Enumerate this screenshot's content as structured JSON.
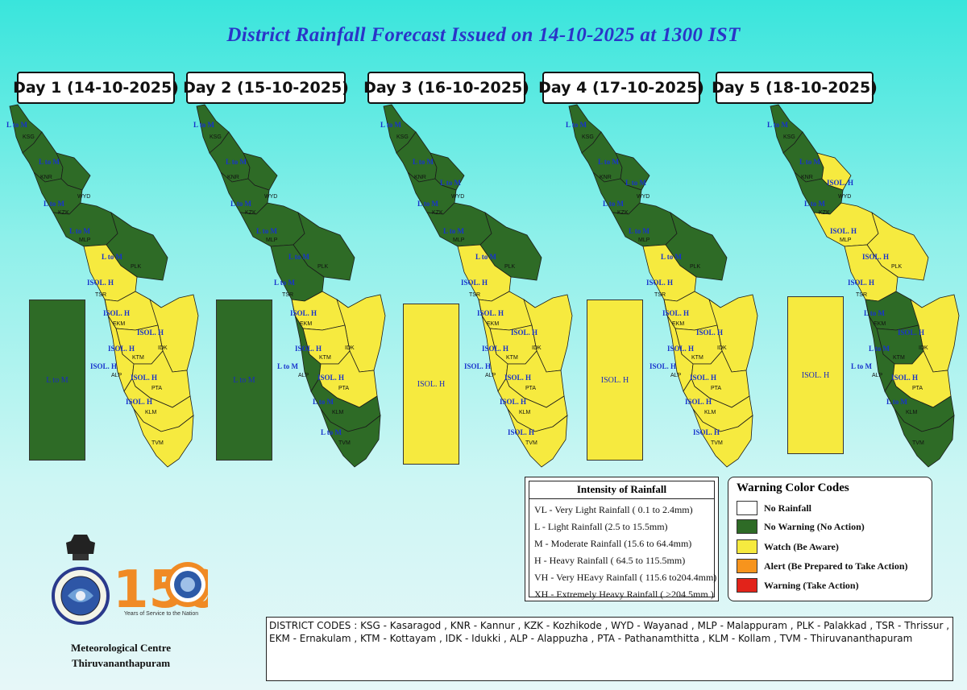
{
  "title": "District Rainfall Forecast Issued on  14-10-2025 at 1300 IST",
  "days": [
    {
      "label": "Day 1 (14-10-2025)",
      "legend_color": "#2e6b26",
      "legend_text": "L to M",
      "districts": {
        "KSG": "#2e6b26",
        "KNR": "#2e6b26",
        "WYD": "#2e6b26",
        "KZK": "#2e6b26",
        "MLP": "#2e6b26",
        "PLK": "#2e6b26",
        "TSR": "#f6ea3f",
        "EKM": "#f6ea3f",
        "IDK": "#f6ea3f",
        "KTM": "#f6ea3f",
        "ALP": "#f6ea3f",
        "PTA": "#f6ea3f",
        "KLM": "#f6ea3f",
        "TVM": "#f6ea3f"
      },
      "intensity": {
        "KSG": "L to M",
        "KNR": "L to M",
        "WYD": "",
        "KZK": "L to M",
        "MLP": "L to M",
        "PLK": "L to M",
        "TSR": "ISOL. H",
        "EKM": "ISOL. H",
        "IDK": "ISOL. H",
        "KTM": "ISOL. H",
        "ALP": "ISOL. H",
        "PTA": "ISOL. H",
        "KLM": "ISOL. H",
        "TVM": ""
      }
    },
    {
      "label": "Day 2 (15-10-2025)",
      "legend_color": "#2e6b26",
      "legend_text": "L to M",
      "districts": {
        "KSG": "#2e6b26",
        "KNR": "#2e6b26",
        "WYD": "#2e6b26",
        "KZK": "#2e6b26",
        "MLP": "#2e6b26",
        "PLK": "#2e6b26",
        "TSR": "#2e6b26",
        "EKM": "#f6ea3f",
        "IDK": "#f6ea3f",
        "KTM": "#f6ea3f",
        "ALP": "#2e6b26",
        "PTA": "#f6ea3f",
        "KLM": "#2e6b26",
        "TVM": "#2e6b26"
      },
      "intensity": {
        "KSG": "L to M",
        "KNR": "L to M",
        "WYD": "",
        "KZK": "L to M",
        "MLP": "L to M",
        "PLK": "L to M",
        "TSR": "L to M",
        "EKM": "ISOL. H",
        "IDK": "",
        "KTM": "ISOL. H",
        "ALP": "L to M",
        "PTA": "ISOL. H",
        "KLM": "L to M",
        "TVM": "L to M"
      }
    },
    {
      "label": "Day 3 (16-10-2025)",
      "legend_color": "#f6ea3f",
      "legend_text": "ISOL. H",
      "districts": {
        "KSG": "#2e6b26",
        "KNR": "#2e6b26",
        "WYD": "#2e6b26",
        "KZK": "#2e6b26",
        "MLP": "#2e6b26",
        "PLK": "#2e6b26",
        "TSR": "#f6ea3f",
        "EKM": "#f6ea3f",
        "IDK": "#f6ea3f",
        "KTM": "#f6ea3f",
        "ALP": "#f6ea3f",
        "PTA": "#f6ea3f",
        "KLM": "#f6ea3f",
        "TVM": "#f6ea3f"
      },
      "intensity": {
        "KSG": "L to M",
        "KNR": "L to M",
        "WYD": "L to M",
        "KZK": "L to M",
        "MLP": "L to M",
        "PLK": "L to M",
        "TSR": "ISOL. H",
        "EKM": "ISOL. H",
        "IDK": "ISOL. H",
        "KTM": "ISOL. H",
        "ALP": "ISOL. H",
        "PTA": "ISOL. H",
        "KLM": "ISOL. H",
        "TVM": "ISOL. H"
      }
    },
    {
      "label": "Day 4 (17-10-2025)",
      "legend_color": "#f6ea3f",
      "legend_text": "ISOL. H",
      "districts": {
        "KSG": "#2e6b26",
        "KNR": "#2e6b26",
        "WYD": "#2e6b26",
        "KZK": "#2e6b26",
        "MLP": "#2e6b26",
        "PLK": "#2e6b26",
        "TSR": "#f6ea3f",
        "EKM": "#f6ea3f",
        "IDK": "#f6ea3f",
        "KTM": "#f6ea3f",
        "ALP": "#f6ea3f",
        "PTA": "#f6ea3f",
        "KLM": "#f6ea3f",
        "TVM": "#f6ea3f"
      },
      "intensity": {
        "KSG": "L to M",
        "KNR": "L to M",
        "WYD": "L to M",
        "KZK": "L to M",
        "MLP": "L to M",
        "PLK": "L to M",
        "TSR": "ISOL. H",
        "EKM": "ISOL. H",
        "IDK": "ISOL. H",
        "KTM": "ISOL. H",
        "ALP": "ISOL. H",
        "PTA": "ISOL. H",
        "KLM": "ISOL. H",
        "TVM": "ISOL. H"
      }
    },
    {
      "label": "Day 5 (18-10-2025)",
      "legend_color": "#f6ea3f",
      "legend_text": "ISOL. H",
      "districts": {
        "KSG": "#2e6b26",
        "KNR": "#2e6b26",
        "WYD": "#f6ea3f",
        "KZK": "#2e6b26",
        "MLP": "#f6ea3f",
        "PLK": "#f6ea3f",
        "TSR": "#f6ea3f",
        "EKM": "#2e6b26",
        "IDK": "#f6ea3f",
        "KTM": "#2e6b26",
        "ALP": "#2e6b26",
        "PTA": "#f6ea3f",
        "KLM": "#2e6b26",
        "TVM": "#2e6b26"
      },
      "intensity": {
        "KSG": "L to M",
        "KNR": "L to M",
        "WYD": "ISOL. H",
        "KZK": "L to M",
        "MLP": "ISOL. H",
        "PLK": "ISOL. H",
        "TSR": "ISOL. H",
        "EKM": "L to M",
        "IDK": "ISOL. H",
        "KTM": "L to M",
        "ALP": "L to M",
        "PTA": "ISOL. H",
        "KLM": "L to M",
        "TVM": ""
      }
    }
  ],
  "intensity_legend": {
    "title": "Intensity of Rainfall",
    "rows": [
      "VL - Very Light Rainfall ( 0.1 to 2.4mm)",
      "L  - Light Rainfall (2.5 to 15.5mm)",
      "M  - Moderate Rainfall (15.6 to 64.4mm)",
      "H  - Heavy Rainfall ( 64.5 to 115.5mm)",
      "VH - Very HEavy Rainfall ( 115.6 to204.4mm)",
      "XH - Extremely Heavy Rainfall ( >204.5mm )"
    ]
  },
  "warning_legend": {
    "title": "Warning Color Codes",
    "items": [
      {
        "color": "#ffffff",
        "label": "No Rainfall"
      },
      {
        "color": "#2e6b26",
        "label": "No Warning (No Action)"
      },
      {
        "color": "#f6ea3f",
        "label": "Watch (Be Aware)"
      },
      {
        "color": "#f7941d",
        "label": "Alert (Be Prepared to Take Action)"
      },
      {
        "color": "#e2231a",
        "label": "Warning (Take Action)"
      }
    ]
  },
  "district_codes": "DISTRICT CODES : KSG - Kasaragod , KNR - Kannur , KZK - Kozhikode , WYD - Wayanad , MLP - Malappuram , PLK - Palakkad , TSR - Thrissur , EKM - Ernakulam , KTM - Kottayam , IDK - Idukki , ALP - Alappuzha ,      PTA - Pathanamthitta , KLM - Kollam , TVM - Thiruvananthapuram",
  "footer": {
    "centre_line1": "Meteorological Centre",
    "centre_line2": "Thiruvananthapuram",
    "logo_number": "150",
    "logo_tagline": "Years of Service to the Nation"
  }
}
